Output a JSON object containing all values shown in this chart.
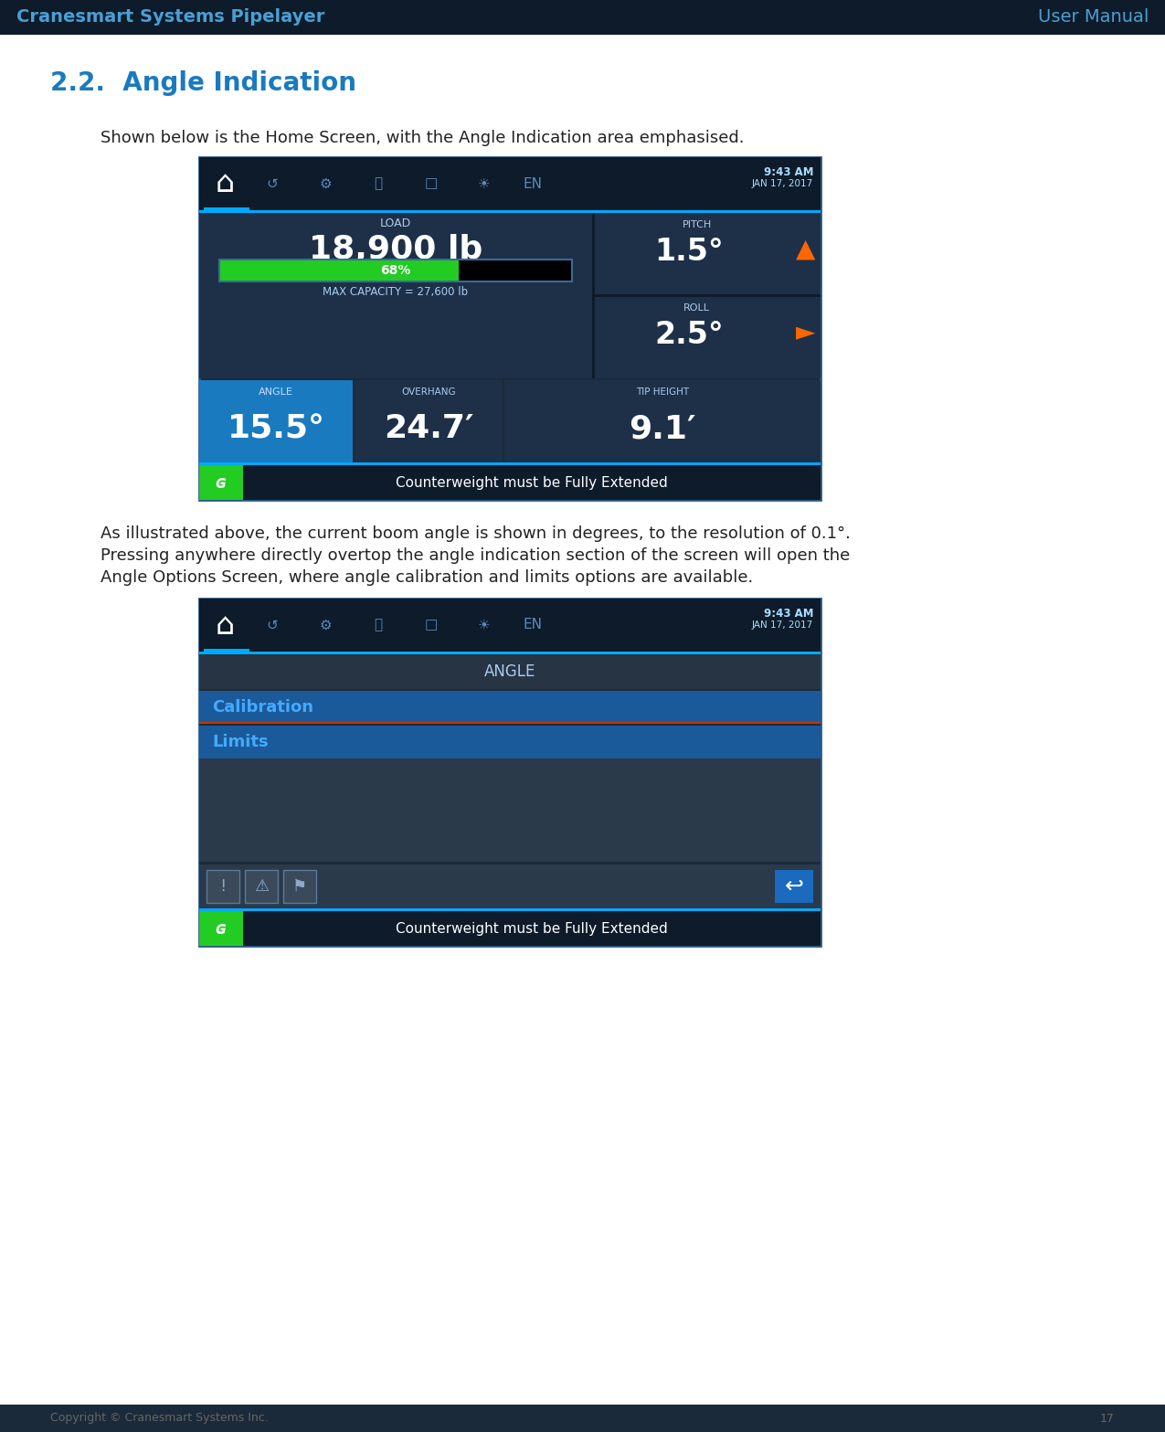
{
  "header_bg": "#0d1b2a",
  "header_text_left": "Cranesmart Systems Pipelayer",
  "header_text_right": "User Manual",
  "header_text_color": "#4a9fd4",
  "page_bg": "#ffffff",
  "footer_text": "Copyright © Cranesmart Systems Inc.",
  "footer_page": "17",
  "section_title": "2.2.  Angle Indication",
  "section_title_color": "#1a7abf",
  "para1": "Shown below is the Home Screen, with the Angle Indication area emphasised.",
  "para2_line1": "As illustrated above, the current boom angle is shown in degrees, to the resolution of 0.1°.",
  "para2_line2": "Pressing anywhere directly overtop the angle indication section of the screen will open the",
  "para2_line3": "Angle Options Screen, where angle calibration and limits options are available.",
  "screen1_bg": "#1a2a3a",
  "screen2_bg": "#1a2a3a",
  "nav_bg": "#0d1b2a",
  "time_text": "9:43 AM",
  "date_text": "JAN 17, 2017",
  "screen_border": "#2a5a8a",
  "load_value": "18,900 lb",
  "load_label": "LOAD",
  "bar_pct": "68%",
  "max_cap": "MAX CAPACITY = 27,600 lb",
  "pitch_label": "PITCH",
  "pitch_value": "1.5°",
  "roll_label": "ROLL",
  "roll_value": "2.5°",
  "angle_label": "ANGLE",
  "angle_value": "15.5°",
  "overhang_label": "OVERHANG",
  "overhang_value": "24.7′",
  "tipheight_label": "TIP HEIGHT",
  "tipheight_value": "9.1′",
  "warning_text": "Counterweight must be Fully Extended",
  "angle_screen_title": "ANGLE",
  "cal_label": "Calibration",
  "limits_label": "Limits",
  "cyan_bar": "#00aaff",
  "green_color": "#22cc22",
  "orange_color": "#ff6600",
  "blue_btn": "#1a6abf",
  "panel_dark": "#1e3048",
  "angle_blue": "#1a7abf",
  "nav_dark": "#0d1b2a"
}
